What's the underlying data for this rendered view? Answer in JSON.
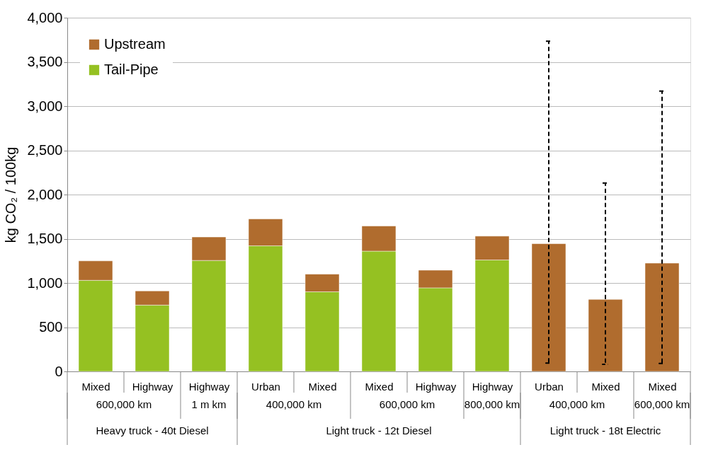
{
  "chart_data": {
    "type": "bar",
    "stacked": true,
    "ylabel": "kg CO₂ / 100kg",
    "categories": [
      "Mixed",
      "Highway",
      "Highway",
      "Urban",
      "Mixed",
      "Mixed",
      "Highway",
      "Highway",
      "Urban",
      "Mixed",
      "Mixed"
    ],
    "series": [
      {
        "name": "Tail-Pipe",
        "color": "#95c122",
        "values": [
          1030,
          750,
          1255,
          1420,
          900,
          1360,
          945,
          1260,
          null,
          null,
          null
        ]
      },
      {
        "name": "Upstream",
        "color": "#b06c2e",
        "values": [
          220,
          160,
          265,
          305,
          200,
          285,
          200,
          270,
          1445,
          815,
          1225
        ],
        "errors": [
          null,
          null,
          null,
          null,
          null,
          null,
          null,
          null,
          [
            95,
            3735
          ],
          [
            80,
            2130
          ],
          [
            90,
            3170
          ]
        ]
      }
    ],
    "annotations": [
      "600,000 km",
      "1 m km",
      "400,000 km",
      "600,000 km",
      "800,000 km",
      "400,000 km",
      "600,000 km",
      "Heavy truck - 40t Diesel",
      "Light truck - 12t Diesel",
      "Light truck - 18t Electric"
    ],
    "ylim": [
      0,
      4000
    ],
    "yticks": [
      0,
      500,
      {
        "value": 1000,
        "label": "1,000"
      },
      {
        "value": 1500,
        "label": "1,500"
      },
      {
        "value": 2000,
        "label": "2,000"
      },
      {
        "value": 2500,
        "label": "2,500"
      },
      {
        "value": 3000,
        "label": "3,000"
      },
      {
        "value": 3500,
        "label": "3,500"
      },
      {
        "value": 4000,
        "label": "4,000"
      }
    ],
    "grid": "y",
    "legend": "top left"
  }
}
